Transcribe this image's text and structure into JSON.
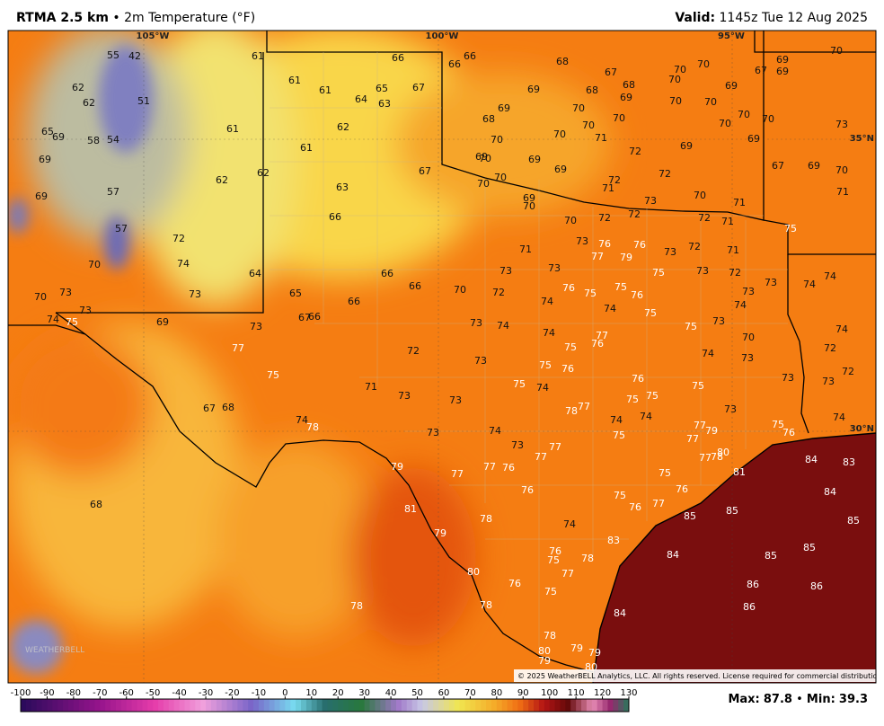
{
  "header": {
    "model": "RTMA 2.5 km",
    "separator": "•",
    "field": "2m Temperature (°F)",
    "valid_label": "Valid:",
    "valid_time": "1145z Tue 12 Aug 2025"
  },
  "grid_labels": [
    "105°W",
    "100°W",
    "95°W",
    "35°N",
    "30°N"
  ],
  "copyright": "© 2025 WeatherBELL Analytics, LLC. All rights reserved. License required for commercial distribution.",
  "watermark": "WEATHERBELL",
  "colorbar": {
    "ticks": [
      -100,
      -90,
      -80,
      -70,
      -60,
      -50,
      -40,
      -30,
      -20,
      -10,
      0,
      10,
      20,
      30,
      40,
      50,
      60,
      70,
      80,
      90,
      100,
      110,
      120,
      130
    ]
  },
  "stats": {
    "max_label": "Max:",
    "max": 87.8,
    "separator": "•",
    "min_label": "Min:",
    "min": 39.3
  },
  "stations": [
    55,
    42,
    61,
    66,
    66,
    66,
    68,
    67,
    70,
    70,
    67,
    69,
    69,
    70,
    62,
    62,
    51,
    61,
    61,
    64,
    65,
    63,
    67,
    69,
    68,
    68,
    69,
    70,
    69,
    70,
    70,
    69,
    68,
    70,
    70,
    70,
    70,
    70,
    70,
    73,
    65,
    69,
    58,
    54,
    61,
    62,
    61,
    70,
    70,
    71,
    69,
    69,
    72,
    69,
    69,
    70,
    69,
    67,
    62,
    62,
    70,
    69,
    72,
    72,
    67,
    69,
    70,
    57,
    69,
    63,
    70,
    71,
    69,
    70,
    73,
    72,
    70,
    71,
    71,
    66,
    70,
    72,
    72,
    71,
    75,
    57,
    72,
    73,
    76,
    76,
    73,
    72,
    71,
    71,
    77,
    79,
    70,
    74,
    64,
    66,
    73,
    73,
    75,
    73,
    72,
    74,
    66,
    70,
    72,
    76,
    75,
    75,
    76,
    73,
    73,
    74,
    70,
    73,
    73,
    65,
    66,
    74,
    74,
    75,
    74,
    73,
    74,
    75,
    69,
    67,
    66,
    73,
    73,
    74,
    75,
    73,
    74,
    74,
    77,
    76,
    75,
    70,
    72,
    77,
    72,
    74,
    73,
    73,
    75,
    76,
    72,
    75,
    76,
    73,
    73,
    71,
    75,
    74,
    73,
    73,
    75,
    75,
    75,
    67,
    68,
    77,
    78,
    73,
    74,
    74,
    74,
    74,
    78,
    77,
    79,
    75,
    76,
    74,
    73,
    75,
    77,
    73,
    77,
    77,
    80,
    77,
    78,
    84,
    83,
    79,
    77,
    76,
    77,
    75,
    81,
    76,
    76,
    75,
    84,
    68,
    81,
    76,
    77,
    85,
    85,
    85,
    78,
    74,
    79,
    83,
    76,
    75,
    78,
    84,
    85,
    85,
    77,
    80,
    76,
    86,
    86,
    75,
    78,
    78,
    86,
    84,
    78,
    79,
    79,
    80,
    79,
    80
  ]
}
